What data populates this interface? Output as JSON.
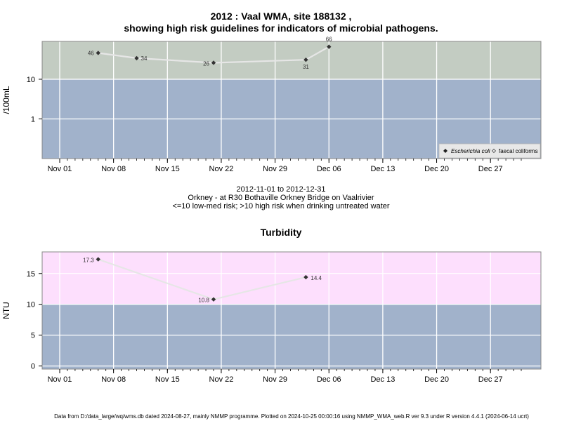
{
  "header": {
    "title_line1": "2012 : Vaal WMA, site 188132 ,",
    "title_line2": "showing high risk guidelines for indicators of microbial pathogens."
  },
  "middle": {
    "date_range": "2012-11-01 to 2012-12-31",
    "site_description": "Orkney - at R30 Bothaville Orkney Bridge on Vaalrivier",
    "risk_note": "<=10 low-med risk; >10 high risk when drinking untreated water"
  },
  "footer": {
    "note": "Data from D:/data_large/wq/wms.db dated 2024-08-27, mainly NMMP programme. Plotted on 2024-10-25 00:00:16 using NMMP_WMA_web.R ver 9.3 under R version 4.4.1 (2024-06-14 ucrt)"
  },
  "colors": {
    "high_risk_micro": "#c3ccc2",
    "high_risk_turb": "#fddffd",
    "low_risk": "#a1b2cb",
    "line": "#e6e6e6",
    "point": "#333333"
  },
  "chart_data": [
    {
      "type": "line",
      "title": "",
      "ylabel": "/100mL",
      "y_scale": "log",
      "x_ticks": [
        "Nov 01",
        "Nov 08",
        "Nov 15",
        "Nov 22",
        "Nov 29",
        "Dec 06",
        "Dec 13",
        "Dec 20",
        "Dec 27"
      ],
      "x_tick_dates": [
        "2012-11-01",
        "2012-11-08",
        "2012-11-15",
        "2012-11-22",
        "2012-11-29",
        "2012-12-06",
        "2012-12-13",
        "2012-12-20",
        "2012-12-27"
      ],
      "y_ticks": [
        1,
        10
      ],
      "y_tick_labels": [
        "1",
        "10"
      ],
      "ylim": [
        0.1,
        90
      ],
      "threshold": 10,
      "legend": {
        "placement": "bottom-right",
        "entries": [
          "Escherichia coli",
          "faecal coliforms"
        ]
      },
      "series": [
        {
          "name": "Escherichia coli",
          "x": [
            "2012-11-06",
            "2012-11-11",
            "2012-11-21",
            "2012-12-03",
            "2012-12-06"
          ],
          "y": [
            46,
            34,
            26,
            31,
            66
          ],
          "labels": [
            "46",
            "34",
            "26",
            "31",
            "66"
          ]
        }
      ]
    },
    {
      "type": "line",
      "title": "Turbidity",
      "ylabel": "NTU",
      "x_ticks": [
        "Nov 01",
        "Nov 08",
        "Nov 15",
        "Nov 22",
        "Nov 29",
        "Dec 06",
        "Dec 13",
        "Dec 20",
        "Dec 27"
      ],
      "x_tick_dates": [
        "2012-11-01",
        "2012-11-08",
        "2012-11-15",
        "2012-11-22",
        "2012-11-29",
        "2012-12-06",
        "2012-12-13",
        "2012-12-20",
        "2012-12-27"
      ],
      "y_ticks": [
        0,
        5,
        10,
        15
      ],
      "y_tick_labels": [
        "0",
        "5",
        "10",
        "15"
      ],
      "ylim": [
        -0.5,
        18.5
      ],
      "threshold": 10,
      "series": [
        {
          "x": [
            "2012-11-06",
            "2012-11-21",
            "2012-12-03"
          ],
          "y": [
            17.3,
            10.8,
            14.4
          ],
          "labels": [
            "17.3",
            "10.8",
            "14.4"
          ]
        }
      ]
    }
  ]
}
